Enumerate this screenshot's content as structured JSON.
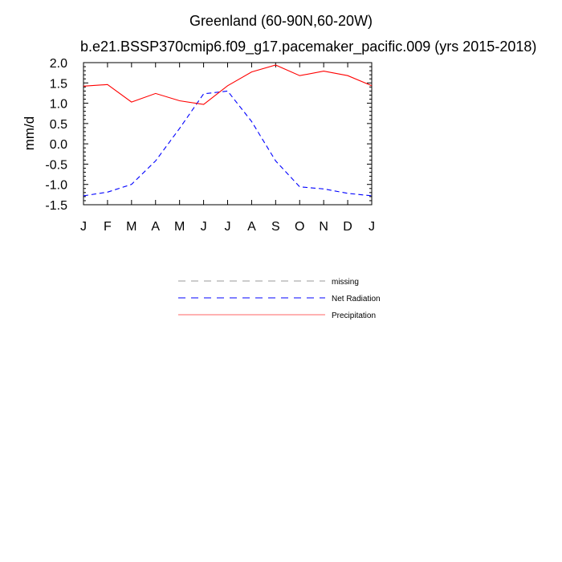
{
  "chart_data": {
    "type": "line",
    "title": "Greenland (60-90N,60-20W)",
    "subtitle": "b.e21.BSSP370cmip6.f09_g17.pacemaker_pacific.009 (yrs 2015-2018)",
    "xlabel": "",
    "ylabel": "mm/d",
    "categories": [
      "J",
      "F",
      "M",
      "A",
      "M",
      "J",
      "J",
      "A",
      "S",
      "O",
      "N",
      "D",
      "J"
    ],
    "ylim": [
      -1.5,
      2.0
    ],
    "yticks": [
      "2.0",
      "1.5",
      "1.0",
      "0.5",
      "0.0",
      "-0.5",
      "-1.0",
      "-1.5"
    ],
    "ytick_values": [
      2.0,
      1.5,
      1.0,
      0.5,
      0.0,
      -0.5,
      -1.0,
      -1.5
    ],
    "grid": false,
    "legend_position": "below",
    "legend": [
      {
        "name": "missing",
        "color": "#999999",
        "style": "dashed"
      },
      {
        "name": "Net Radiation",
        "color": "#0000ff",
        "style": "dashed"
      },
      {
        "name": "Precipitation",
        "color": "#ff0000",
        "style": "solid"
      }
    ],
    "series": [
      {
        "name": "Net Radiation",
        "color": "#0000ff",
        "style": "dashed",
        "values": [
          -1.28,
          -1.19,
          -1.0,
          -0.42,
          0.38,
          1.23,
          1.3,
          0.55,
          -0.42,
          -1.06,
          -1.11,
          -1.22,
          -1.28
        ]
      },
      {
        "name": "Precipitation",
        "color": "#ff0000",
        "style": "solid",
        "values": [
          1.42,
          1.46,
          1.03,
          1.24,
          1.06,
          0.97,
          1.43,
          1.77,
          1.94,
          1.68,
          1.79,
          1.68,
          1.43
        ]
      }
    ]
  }
}
